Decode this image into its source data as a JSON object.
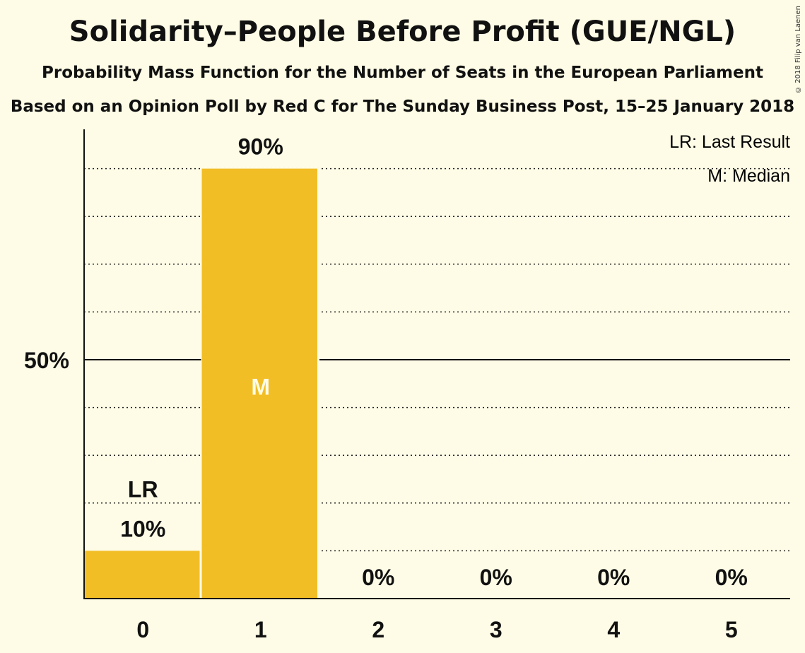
{
  "header": {
    "title": "Solidarity–People Before Profit (GUE/NGL)",
    "subtitle": "Probability Mass Function for the Number of Seats in the European Parliament",
    "subtitle2": "Based on an Opinion Poll by Red C for The Sunday Business Post, 15–25 January 2018",
    "copyright": "© 2018 Filip van Laenen"
  },
  "legend": {
    "last_result": "LR: Last Result",
    "median": "M: Median"
  },
  "colors": {
    "bar": "#f2be26",
    "background": "#fefce6",
    "median_label": "#fefce6"
  },
  "chart_data": {
    "type": "bar",
    "categories": [
      "0",
      "1",
      "2",
      "3",
      "4",
      "5"
    ],
    "values": [
      10,
      90,
      0,
      0,
      0,
      0
    ],
    "value_labels": [
      "10%",
      "90%",
      "0%",
      "0%",
      "0%",
      "0%"
    ],
    "ylim": [
      0,
      100
    ],
    "y_tick_labels": [
      {
        "value": 50,
        "label": "50%"
      }
    ],
    "gridlines_dotted": [
      10,
      20,
      30,
      40,
      60,
      70,
      80,
      90
    ],
    "markers": {
      "last_result": {
        "category": "0",
        "label": "LR"
      },
      "median": {
        "category": "1",
        "label": "M"
      }
    },
    "legend_position": "top-right",
    "xlabel": "",
    "ylabel": ""
  }
}
